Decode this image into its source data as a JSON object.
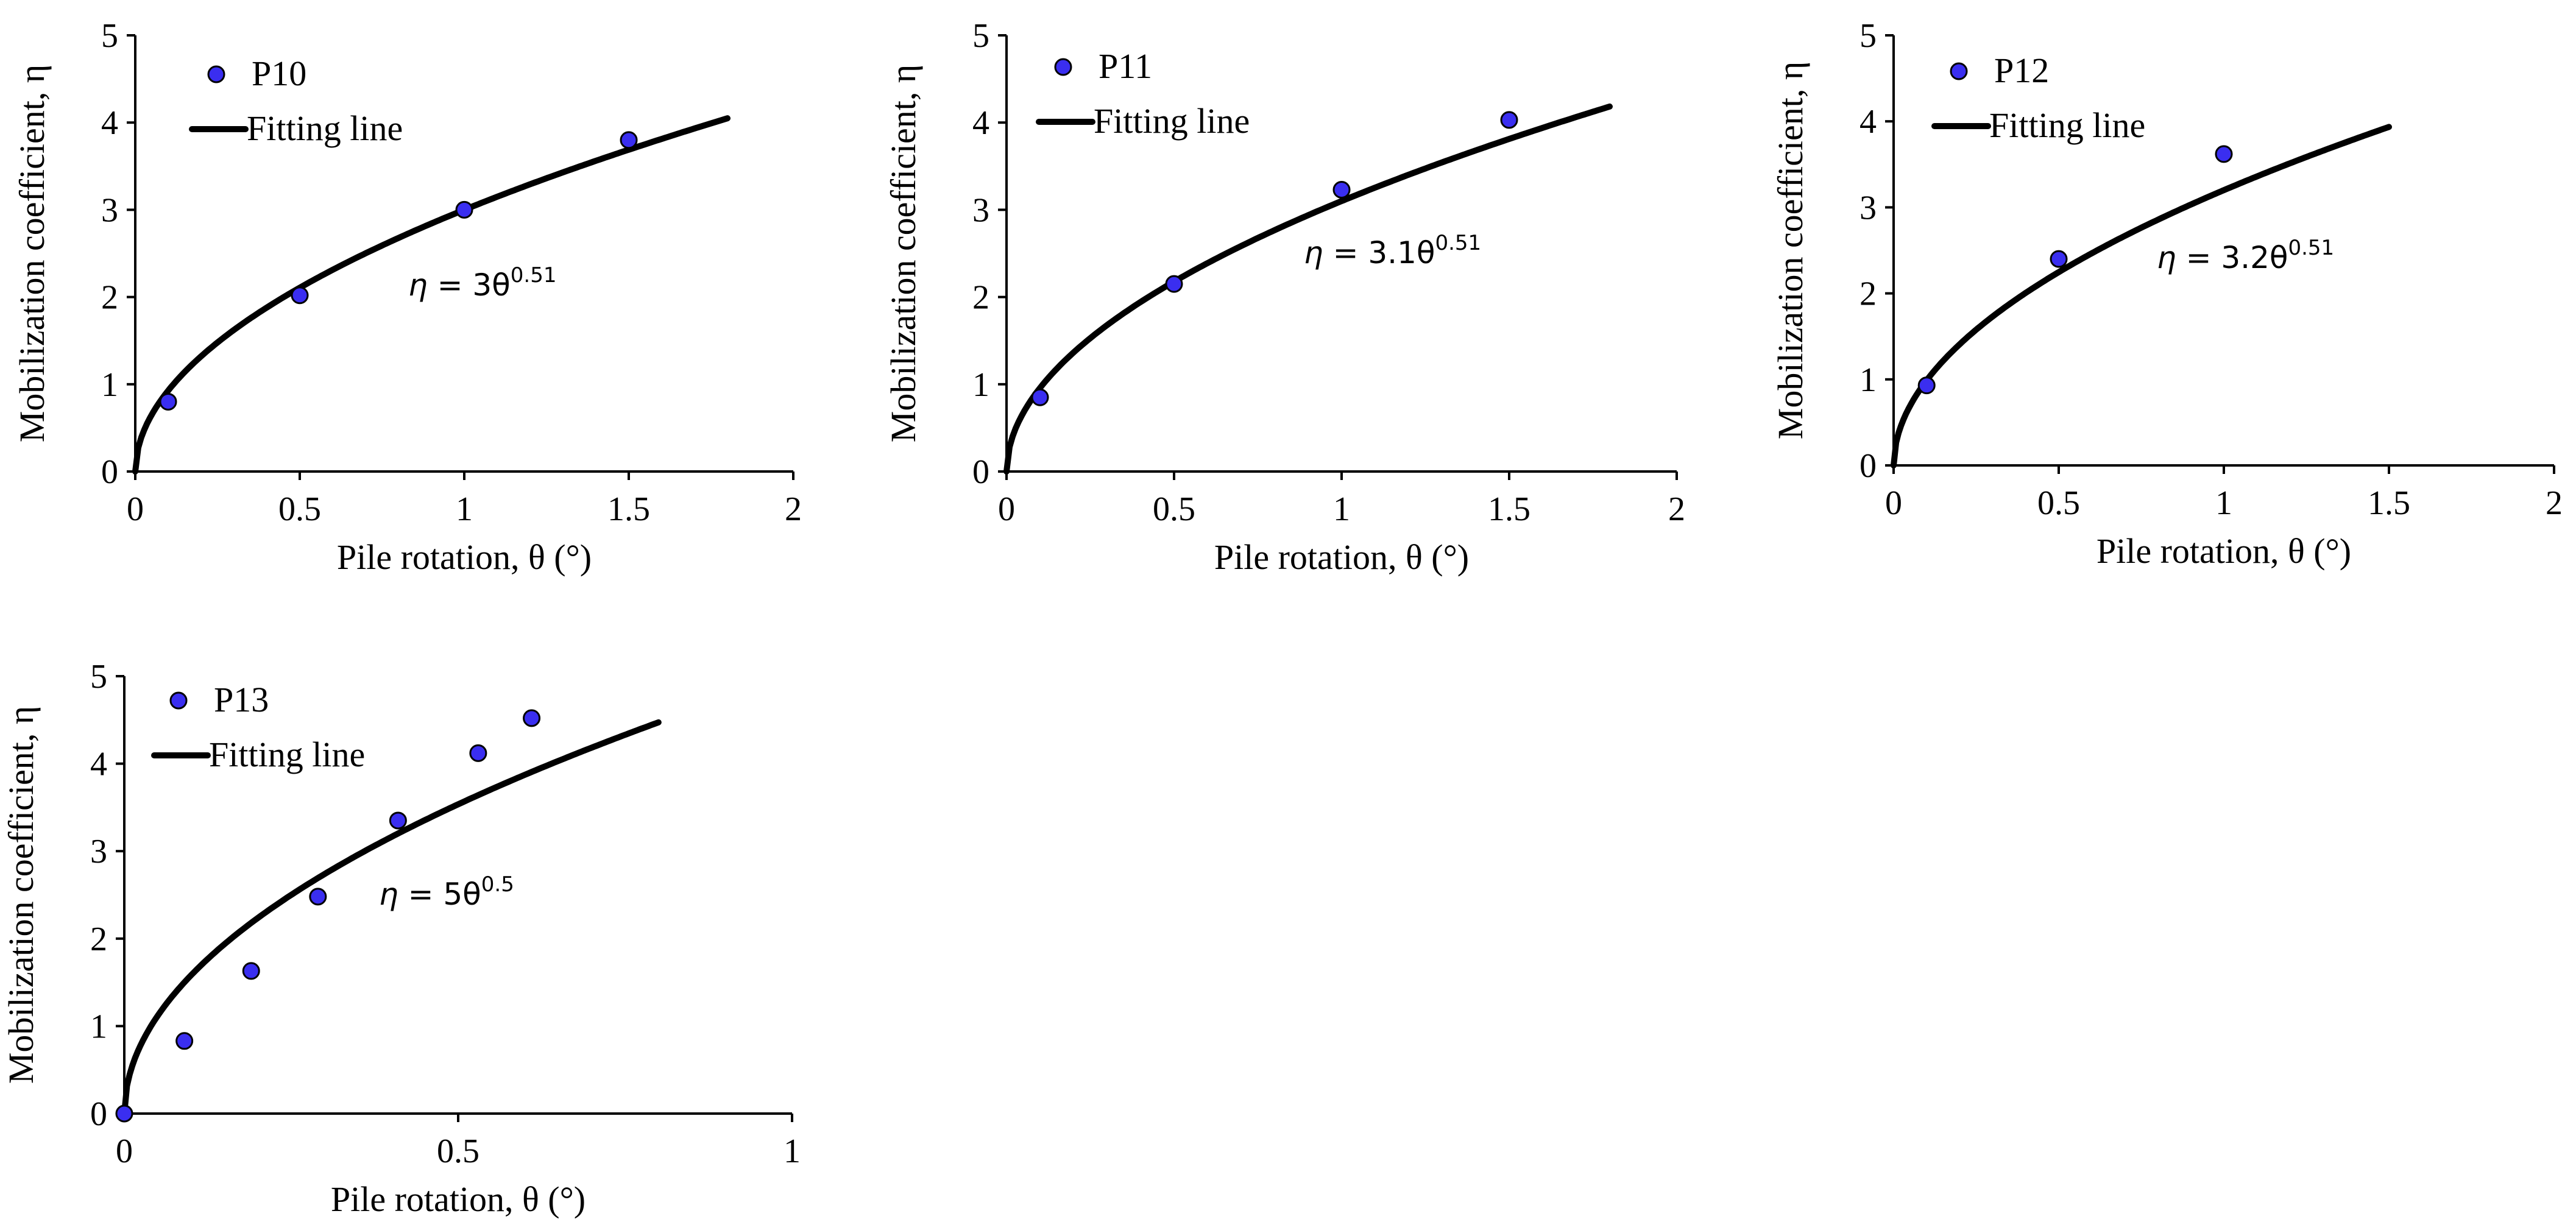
{
  "colors": {
    "marker": "#3a2ef0",
    "line": "#000000"
  },
  "chart_data": [
    {
      "type": "scatter",
      "series_name": "P10",
      "fit_label": "Fitting line",
      "equation": {
        "lhs": "η = ",
        "coef": "3θ",
        "exp": "0.51"
      },
      "fit": {
        "a": 3,
        "b": 0.51,
        "xmax": 1.8
      },
      "points": {
        "x": [
          0.1,
          0.5,
          1.0,
          1.5
        ],
        "y": [
          0.8,
          2.02,
          3.0,
          3.8
        ]
      },
      "xlim": [
        0,
        2
      ],
      "ylim": [
        0,
        5
      ],
      "xticks": [
        0,
        0.5,
        1,
        1.5,
        2
      ],
      "xtick_labels": [
        "0",
        "0.5",
        "1",
        "1.5",
        "2"
      ],
      "yticks": [
        0,
        1,
        2,
        3,
        4,
        5
      ],
      "ytick_labels": [
        "0",
        "1",
        "2",
        "3",
        "4",
        "5"
      ],
      "xlabel": "Pile rotation, θ (°)",
      "ylabel": "Mobilization coefficient, η"
    },
    {
      "type": "scatter",
      "series_name": "P11",
      "fit_label": "Fitting line",
      "equation": {
        "lhs": "η = ",
        "coef": "3.1θ",
        "exp": "0.51"
      },
      "fit": {
        "a": 3.1,
        "b": 0.51,
        "xmax": 1.8
      },
      "points": {
        "x": [
          0.1,
          0.5,
          1.0,
          1.5
        ],
        "y": [
          0.85,
          2.15,
          3.23,
          4.03
        ]
      },
      "xlim": [
        0,
        2
      ],
      "ylim": [
        0,
        5
      ],
      "xticks": [
        0,
        0.5,
        1,
        1.5,
        2
      ],
      "xtick_labels": [
        "0",
        "0.5",
        "1",
        "1.5",
        "2"
      ],
      "yticks": [
        0,
        1,
        2,
        3,
        4,
        5
      ],
      "ytick_labels": [
        "0",
        "1",
        "2",
        "3",
        "4",
        "5"
      ],
      "xlabel": "Pile rotation, θ (°)",
      "ylabel": "Mobilization coefficient, η"
    },
    {
      "type": "scatter",
      "series_name": "P12",
      "fit_label": "Fitting line",
      "equation": {
        "lhs": "η = ",
        "coef": "3.2θ",
        "exp": "0.51"
      },
      "fit": {
        "a": 3.2,
        "b": 0.51,
        "xmax": 1.5
      },
      "points": {
        "x": [
          0.1,
          0.5,
          1.0
        ],
        "y": [
          0.93,
          2.4,
          3.62
        ]
      },
      "xlim": [
        0,
        2
      ],
      "ylim": [
        0,
        5
      ],
      "xticks": [
        0,
        0.5,
        1,
        1.5,
        2
      ],
      "xtick_labels": [
        "0",
        "0.5",
        "1",
        "1.5",
        "2"
      ],
      "yticks": [
        0,
        1,
        2,
        3,
        4,
        5
      ],
      "ytick_labels": [
        "0",
        "1",
        "2",
        "3",
        "4",
        "5"
      ],
      "xlabel": "Pile rotation, θ (°)",
      "ylabel": "Mobilization coefficient, η"
    },
    {
      "type": "scatter",
      "series_name": "P13",
      "fit_label": "Fitting line",
      "equation": {
        "lhs": "η = ",
        "coef": "5θ",
        "exp": "0.5"
      },
      "fit": {
        "a": 5,
        "b": 0.5,
        "xmax": 0.8
      },
      "points": {
        "x": [
          0,
          0.09,
          0.19,
          0.29,
          0.41,
          0.53,
          0.61
        ],
        "y": [
          0,
          0.83,
          1.63,
          2.48,
          3.35,
          4.12,
          4.52
        ]
      },
      "xlim": [
        0,
        1
      ],
      "ylim": [
        0,
        5
      ],
      "xticks": [
        0,
        0.5,
        1
      ],
      "xtick_labels": [
        "0",
        "0.5",
        "1"
      ],
      "yticks": [
        0,
        1,
        2,
        3,
        4,
        5
      ],
      "ytick_labels": [
        "0",
        "1",
        "2",
        "3",
        "4",
        "5"
      ],
      "xlabel": "Pile rotation, θ (°)",
      "ylabel": "Mobilization coefficient, η"
    }
  ]
}
